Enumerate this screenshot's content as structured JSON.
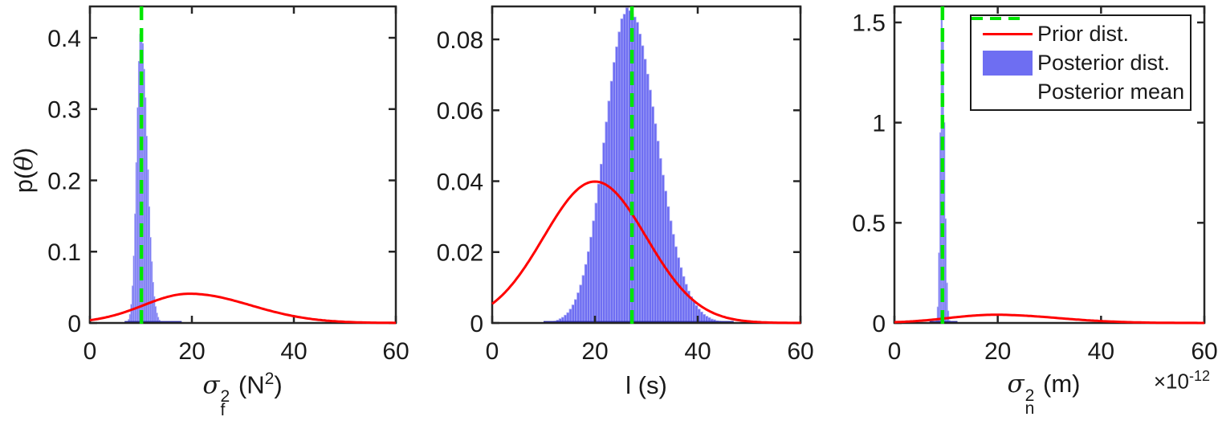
{
  "figure": {
    "background": "#ffffff"
  },
  "colors": {
    "prior": "#ff0000",
    "posterior_fill": "#6e6ef2",
    "posterior_edge": "#a6a6f7",
    "posterior_dark_edge": "#2a2aa8",
    "posterior_mean": "#00e600",
    "axis": "#262626",
    "text": "#1a1a1a"
  },
  "legend": {
    "items": [
      {
        "label": "Prior dist.",
        "type": "line"
      },
      {
        "label": "Posterior dist.",
        "type": "patch"
      },
      {
        "label": "Posterior mean",
        "type": "dashed"
      }
    ]
  },
  "x_offset_label": {
    "rich": [
      {
        "t": "×10"
      },
      {
        "sup": "-12"
      }
    ],
    "text": "×10^-12"
  },
  "chart_data": [
    {
      "type": "histogram+line",
      "xlabel": "σ_f^2 (N^2)",
      "xlabel_rich": [
        {
          "t": "σ",
          "sym": true
        },
        {
          "stack": {
            "top": "2",
            "bot": "f"
          }
        },
        {
          "t": " (N"
        },
        {
          "sup": "2"
        },
        {
          "t": ")"
        }
      ],
      "ylabel": "p(θ)",
      "ylabel_rich": [
        {
          "t": "p("
        },
        {
          "t": "θ",
          "sym": true
        },
        {
          "t": ")"
        }
      ],
      "xlim": [
        0,
        60
      ],
      "ylim": [
        0,
        0.444
      ],
      "xticks": {
        "values": [
          0,
          20,
          40,
          60
        ],
        "labels": [
          "0",
          "20",
          "40",
          "60"
        ]
      },
      "yticks": {
        "values": [
          0,
          0.1,
          0.2,
          0.3,
          0.4
        ],
        "labels": [
          "0",
          "0.1",
          "0.2",
          "0.3",
          "0.4"
        ]
      },
      "prior": {
        "shape": "split-normal",
        "mode": 19.5,
        "sigma_left": 9,
        "sigma_right": 12,
        "peak": 0.041
      },
      "posterior_hist": {
        "x0": 7.25,
        "bin_width": 0.25,
        "heights": [
          0.002,
          0.005,
          0.012,
          0.026,
          0.052,
          0.094,
          0.153,
          0.225,
          0.302,
          0.367,
          0.405,
          0.41,
          0.392,
          0.356,
          0.316,
          0.262,
          0.215,
          0.163,
          0.12,
          0.086,
          0.057,
          0.037,
          0.023,
          0.014,
          0.008,
          0.004,
          0.002,
          0.001
        ]
      },
      "posterior_mean": 10.1,
      "baseline_strip": [
        6.8,
        18.0
      ]
    },
    {
      "type": "histogram+line",
      "xlabel": "l (s)",
      "xlabel_rich": [
        {
          "t": "l"
        },
        {
          "t": " (s)"
        }
      ],
      "ylabel": "",
      "xlim": [
        0,
        60
      ],
      "ylim": [
        0,
        0.0893
      ],
      "xticks": {
        "values": [
          0,
          20,
          40,
          60
        ],
        "labels": [
          "0",
          "20",
          "40",
          "60"
        ]
      },
      "yticks": {
        "values": [
          0,
          0.02,
          0.04,
          0.06,
          0.08
        ],
        "labels": [
          "0",
          "0.02",
          "0.04",
          "0.06",
          "0.08"
        ]
      },
      "prior": {
        "shape": "split-normal",
        "mode": 20,
        "sigma_left": 10,
        "sigma_right": 10,
        "peak": 0.0399
      },
      "posterior_hist": {
        "x0": 12.0,
        "bin_width": 0.5,
        "heights": [
          0.0005,
          0.0008,
          0.0012,
          0.0016,
          0.0022,
          0.0029,
          0.0039,
          0.0051,
          0.0066,
          0.0085,
          0.0107,
          0.0134,
          0.0165,
          0.0201,
          0.0242,
          0.0288,
          0.0338,
          0.0392,
          0.0448,
          0.0508,
          0.0567,
          0.0626,
          0.0682,
          0.0735,
          0.0779,
          0.0821,
          0.0858,
          0.0871,
          0.0889,
          0.0881,
          0.0872,
          0.0863,
          0.0848,
          0.0815,
          0.0782,
          0.0744,
          0.0702,
          0.0657,
          0.061,
          0.0562,
          0.0513,
          0.0464,
          0.0417,
          0.0372,
          0.0328,
          0.0288,
          0.025,
          0.0215,
          0.0184,
          0.0156,
          0.0131,
          0.0109,
          0.009,
          0.0074,
          0.006,
          0.0049,
          0.0039,
          0.0031,
          0.0024,
          0.0019,
          0.0015,
          0.0011,
          0.0009,
          0.0006,
          0.0005,
          0.0004,
          0.0003,
          0.0002
        ]
      },
      "posterior_mean": 27.2,
      "baseline_strip": [
        10.0,
        47.0
      ]
    },
    {
      "type": "histogram+line",
      "xlabel": "σ_n^2 (m)",
      "xlabel_rich": [
        {
          "t": "σ",
          "sym": true
        },
        {
          "stack": {
            "top": "2",
            "bot": "n"
          }
        },
        {
          "t": " (m)"
        }
      ],
      "ylabel": "",
      "x_multiplier": "1e-12",
      "xlim": [
        0,
        60
      ],
      "ylim": [
        0,
        1.58
      ],
      "xticks": {
        "values": [
          0,
          20,
          40,
          60
        ],
        "labels": [
          "0",
          "20",
          "40",
          "60"
        ]
      },
      "yticks": {
        "values": [
          0,
          0.5,
          1,
          1.5
        ],
        "labels": [
          "0",
          "0.5",
          "1",
          "1.5"
        ]
      },
      "prior": {
        "shape": "split-normal",
        "mode": 19.5,
        "sigma_left": 9,
        "sigma_right": 12,
        "peak": 0.041
      },
      "posterior_hist": {
        "x0": 7.775,
        "bin_width": 0.25,
        "heights": [
          0.005,
          0.012,
          0.08,
          0.35,
          0.95,
          1.52,
          1.45,
          1.0,
          0.52,
          0.2,
          0.06,
          0.012,
          0.005
        ]
      },
      "posterior_mean": 9.3,
      "baseline_strip": [
        6.8,
        12.2
      ]
    }
  ]
}
